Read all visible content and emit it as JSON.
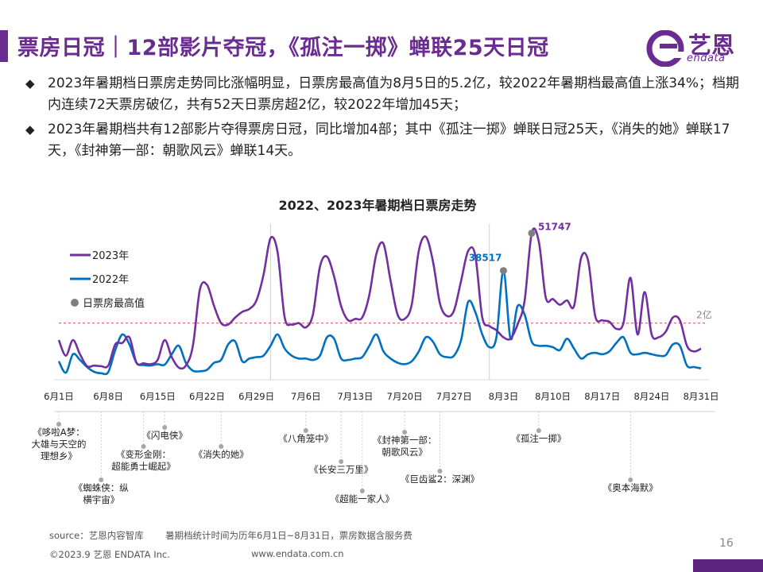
{
  "header": {
    "title": "票房日冠｜12部影片夺冠，《孤注一掷》蝉联25天日冠",
    "logo_cn": "艺恩",
    "logo_en": "endata"
  },
  "bullets": [
    {
      "text": "2023年暑期档日票房走势同比涨幅明显，日票房最高值为8月5日的5.2亿，较2022年暑期档最高值上涨34%；档期内连续72天票房破亿，共有52天日票房超2亿，较2022年增加45天；"
    },
    {
      "text": "2023年暑期档共有12部影片夺得票房日冠，同比增加4部；其中《孤注一掷》蝉联日冠25天，《消失的她》蝉联17天，《封神第一部：朝歌风云》蝉联14天。"
    }
  ],
  "colors": {
    "brand": "#6b2c91",
    "series2023": "#7030a0",
    "series2022": "#0070c0",
    "peak": "#808080",
    "threshold": "#c0504d"
  },
  "chart_data": {
    "type": "line",
    "title": "2022、2023年暑期档日票房走势",
    "x_tick_labels": [
      "6月1日",
      "6月8日",
      "6月15日",
      "6月22日",
      "6月29日",
      "7月6日",
      "7月13日",
      "7月20日",
      "7月27日",
      "8月3日",
      "8月10日",
      "8月17日",
      "8月24日",
      "8月31日"
    ],
    "x_start_label": "6月1日",
    "days": 92,
    "ylim": [
      0,
      55000
    ],
    "threshold": {
      "value": 20000,
      "label": "2亿"
    },
    "legend": [
      "2023年",
      "2022年",
      "日票房最高值"
    ],
    "legend_position": "top-left",
    "series": [
      {
        "name": "2023年",
        "color": "#7030a0",
        "values": [
          14000,
          8500,
          14000,
          9000,
          4800,
          5000,
          4800,
          5000,
          12500,
          13000,
          15000,
          6000,
          5800,
          5500,
          7000,
          14000,
          8000,
          4300,
          5000,
          12000,
          32000,
          33500,
          26000,
          20000,
          19500,
          22000,
          24000,
          25000,
          28000,
          37000,
          50000,
          45000,
          22000,
          19500,
          20000,
          18500,
          23000,
          40000,
          43500,
          36500,
          26000,
          21000,
          21500,
          22000,
          30000,
          44500,
          48000,
          35000,
          23000,
          21500,
          26500,
          45500,
          50500,
          42000,
          27000,
          22500,
          24500,
          35000,
          45500,
          44000,
          22000,
          19000,
          17500,
          15000,
          14500,
          19500,
          28000,
          51747,
          49000,
          29000,
          28500,
          26500,
          28000,
          26000,
          43000,
          42000,
          22500,
          21000,
          20500,
          18000,
          20000,
          36000,
          16000,
          31000,
          16000,
          15000,
          17000,
          22000,
          21000,
          12000,
          10000,
          11000
        ]
      },
      {
        "name": "2022年",
        "color": "#0070c0",
        "values": [
          6500,
          2500,
          9000,
          7000,
          4500,
          2800,
          2300,
          2700,
          10500,
          16000,
          12500,
          6000,
          5200,
          5000,
          5500,
          5300,
          9000,
          12000,
          6000,
          3200,
          3000,
          3500,
          6000,
          7000,
          12500,
          13500,
          6500,
          7500,
          8000,
          8500,
          12000,
          16000,
          11000,
          8500,
          7500,
          7500,
          7000,
          8500,
          15000,
          14500,
          7500,
          7000,
          7500,
          8000,
          12000,
          16000,
          10000,
          7500,
          6000,
          5500,
          6500,
          10000,
          15000,
          13500,
          9000,
          8000,
          8500,
          14000,
          27500,
          24000,
          16000,
          11500,
          15000,
          38517,
          14500,
          26000,
          23000,
          13500,
          12000,
          12000,
          11500,
          10500,
          14500,
          11000,
          7500,
          9000,
          9500,
          9000,
          10000,
          13000,
          15000,
          9500,
          9000,
          9500,
          9000,
          8500,
          8700,
          12500,
          12000,
          5000,
          4500,
          4000
        ]
      }
    ],
    "peaks": [
      {
        "series": "2023年",
        "value": 51747,
        "label": "51747"
      },
      {
        "series": "2022年",
        "value": 38517,
        "label": "38517"
      }
    ],
    "annotations": [
      {
        "label": "《哆啦A梦：大雄与天空的理想乡》",
        "day": 1,
        "lines": [
          "《哆啦A梦：",
          "大雄与天空的",
          "理想乡》"
        ]
      },
      {
        "label": "《蜘蛛侠：纵横宇宙》",
        "day": 7,
        "lines": [
          "《蜘蛛侠：纵",
          "横宇宙》"
        ]
      },
      {
        "label": "《变形金刚：超能勇士崛起》",
        "day": 13,
        "lines": [
          "《变形金刚：",
          "超能勇士崛起》"
        ]
      },
      {
        "label": "《闪电侠》",
        "day": 16,
        "lines": [
          "《闪电侠》"
        ]
      },
      {
        "label": "《消失的她》",
        "day": 24,
        "lines": [
          "《消失的她》"
        ]
      },
      {
        "label": "《八角笼中》",
        "day": 36,
        "lines": [
          "《八角笼中》"
        ]
      },
      {
        "label": "《长安三万里》",
        "day": 41,
        "lines": [
          "《长安三万里》"
        ]
      },
      {
        "label": "《超能一家人》",
        "day": 44,
        "lines": [
          "《超能一家人》"
        ]
      },
      {
        "label": "《封神第一部：朝歌风云》",
        "day": 50,
        "lines": [
          "《封神第一部：",
          "朝歌风云》"
        ]
      },
      {
        "label": "《巨齿鲨2：深渊》",
        "day": 55,
        "lines": [
          "《巨齿鲨2：深渊》"
        ]
      },
      {
        "label": "《孤注一掷》",
        "day": 69,
        "lines": [
          "《孤注一掷》"
        ]
      },
      {
        "label": "《奥本海默》",
        "day": 82,
        "lines": [
          "《奥本海默》"
        ]
      }
    ]
  },
  "footer": {
    "source": "source：艺恩内容智库",
    "note": "暑期档统计时间为历年6月1日~8月31日，票房数据含服务费",
    "copyright": "©2023.9 艺恩 ENDATA Inc.",
    "website": "www.endata.com.cn",
    "page": "16"
  }
}
